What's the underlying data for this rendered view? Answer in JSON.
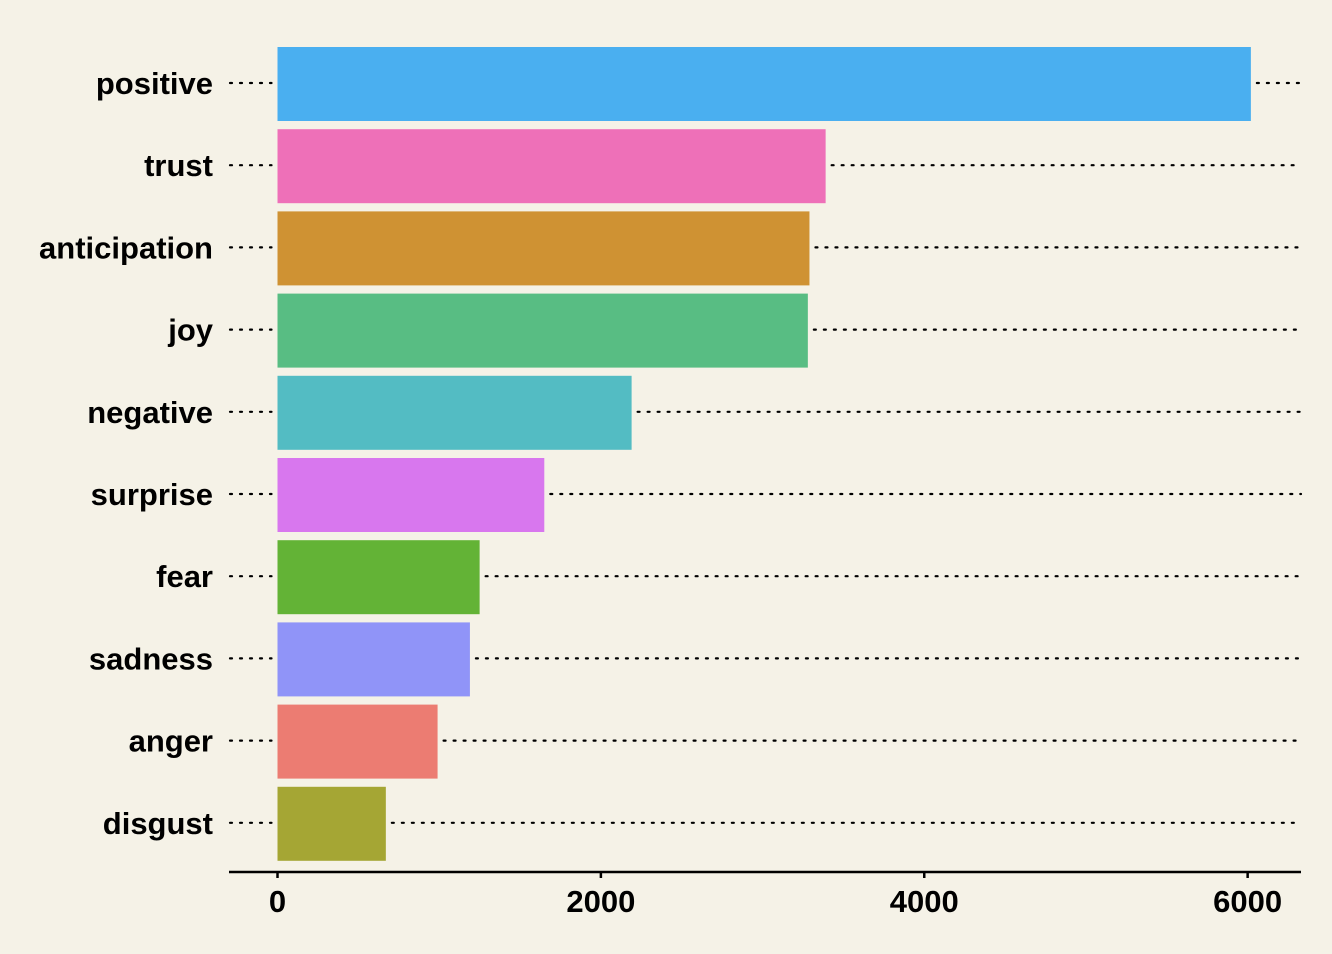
{
  "chart_data": {
    "type": "bar",
    "orientation": "horizontal",
    "categories": [
      "positive",
      "trust",
      "anticipation",
      "joy",
      "negative",
      "surprise",
      "fear",
      "sadness",
      "anger",
      "disgust"
    ],
    "values": [
      6020,
      3390,
      3290,
      3280,
      2190,
      1650,
      1250,
      1190,
      990,
      670
    ],
    "colors": [
      "#4aaff0",
      "#ee70b8",
      "#cf9233",
      "#58bd83",
      "#53bcc3",
      "#d877ee",
      "#63b336",
      "#9094f8",
      "#ec7c72",
      "#a5a634"
    ],
    "xlim": [
      -300,
      6330
    ],
    "xticks": [
      0,
      2000,
      4000,
      6000
    ],
    "xtick_labels": [
      "0",
      "2000",
      "4000",
      "6000"
    ],
    "title": "",
    "xlabel": "",
    "ylabel": "",
    "grid": "dotted horizontal guide lines per category",
    "legend": "none",
    "background": "#f5f2e7"
  }
}
